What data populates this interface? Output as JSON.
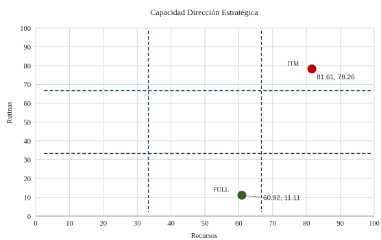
{
  "chart_data": {
    "type": "scatter",
    "title": "Capacidad Dirección Estratégica",
    "xlabel": "Recursos",
    "ylabel": "Rutinas",
    "xlim": [
      0,
      100
    ],
    "ylim": [
      0,
      100
    ],
    "xticks": [
      0,
      10,
      20,
      30,
      40,
      50,
      60,
      70,
      80,
      90,
      100
    ],
    "yticks": [
      0,
      10,
      20,
      30,
      40,
      50,
      60,
      70,
      80,
      90,
      100
    ],
    "grid": true,
    "points": [
      {
        "name": "ITM",
        "x": 81.61,
        "y": 78.26,
        "value_label": "81.61, 78.26",
        "color": "#c00000"
      },
      {
        "name": "FULL",
        "x": 60.92,
        "y": 11.11,
        "value_label": "60.92, 11.11",
        "color": "#3a5e2a"
      }
    ],
    "reference_lines": {
      "vertical": [
        33.3,
        66.7
      ],
      "horizontal": [
        33.3,
        66.7
      ],
      "color": "#1f3864"
    }
  }
}
